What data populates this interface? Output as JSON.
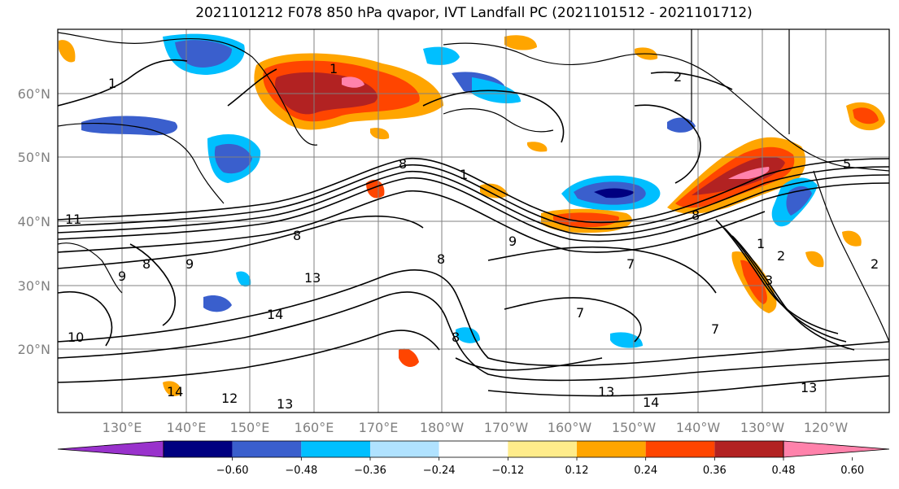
{
  "title": "2021101212 F078 850 hPa qvapor, IVT Landfall PC (2021101512 - 2021101712)",
  "lat_labels": [
    "60°N",
    "50°N",
    "40°N",
    "30°N",
    "20°N"
  ],
  "lon_labels": [
    "130°E",
    "140°E",
    "150°E",
    "160°E",
    "170°E",
    "180°W",
    "170°W",
    "160°W",
    "150°W",
    "140°W",
    "130°W",
    "120°W"
  ],
  "colorbar": {
    "tick_labels": [
      "−0.60",
      "−0.48",
      "−0.36",
      "−0.24",
      "−0.12",
      "0.12",
      "0.24",
      "0.36",
      "0.48",
      "0.60"
    ],
    "colors": [
      "#9932cc",
      "#000080",
      "#3a5fcd",
      "#00bfff",
      "#b0e2ff",
      "#ffffff",
      "#ffec8b",
      "#ffa500",
      "#ff4500",
      "#b22222",
      "#ff82ab"
    ]
  },
  "contour_labels": [
    {
      "text": "1"
    },
    {
      "text": "2"
    },
    {
      "text": "1"
    },
    {
      "text": "5"
    },
    {
      "text": "8"
    },
    {
      "text": "1"
    },
    {
      "text": "8"
    },
    {
      "text": "9"
    },
    {
      "text": "8"
    },
    {
      "text": "13"
    },
    {
      "text": "14"
    },
    {
      "text": "7"
    },
    {
      "text": "7"
    },
    {
      "text": "8"
    },
    {
      "text": "13"
    },
    {
      "text": "14"
    },
    {
      "text": "13"
    },
    {
      "text": "13"
    },
    {
      "text": "12"
    },
    {
      "text": "14"
    },
    {
      "text": "10"
    },
    {
      "text": "8"
    },
    {
      "text": "9"
    },
    {
      "text": "2"
    },
    {
      "text": "3"
    },
    {
      "text": "1"
    },
    {
      "text": "2"
    },
    {
      "text": "9"
    },
    {
      "text": "11"
    },
    {
      "text": "8"
    },
    {
      "text": "7"
    }
  ]
}
